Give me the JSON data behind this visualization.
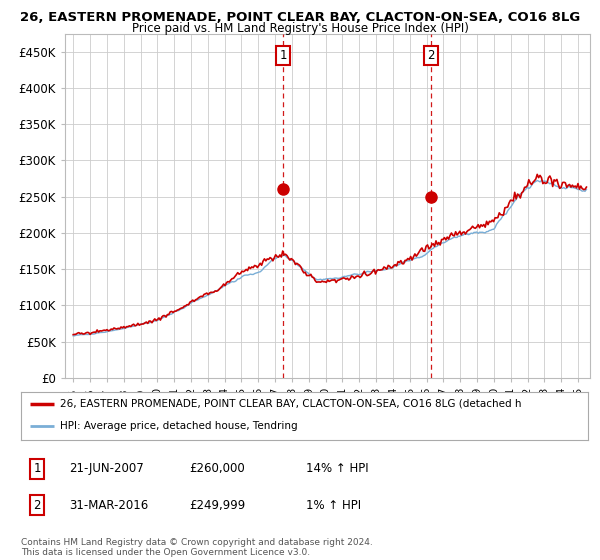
{
  "title1": "26, EASTERN PROMENADE, POINT CLEAR BAY, CLACTON-ON-SEA, CO16 8LG",
  "title2": "Price paid vs. HM Land Registry's House Price Index (HPI)",
  "ylabel_ticks": [
    "£0",
    "£50K",
    "£100K",
    "£150K",
    "£200K",
    "£250K",
    "£300K",
    "£350K",
    "£400K",
    "£450K"
  ],
  "ytick_vals": [
    0,
    50000,
    100000,
    150000,
    200000,
    250000,
    300000,
    350000,
    400000,
    450000
  ],
  "ylim": [
    0,
    475000
  ],
  "xlim_start": 1994.5,
  "xlim_end": 2025.7,
  "sale1_x": 2007.47,
  "sale1_y": 260000,
  "sale2_x": 2016.25,
  "sale2_y": 249999,
  "hpi_color": "#7aaed6",
  "price_color": "#cc0000",
  "shade_color": "#daeaf7",
  "vline_color": "#cc0000",
  "legend_label1": "26, EASTERN PROMENADE, POINT CLEAR BAY, CLACTON-ON-SEA, CO16 8LG (detached h",
  "legend_label2": "HPI: Average price, detached house, Tendring",
  "table_row1": [
    "1",
    "21-JUN-2007",
    "£260,000",
    "14% ↑ HPI"
  ],
  "table_row2": [
    "2",
    "31-MAR-2016",
    "£249,999",
    "1% ↑ HPI"
  ],
  "footer": "Contains HM Land Registry data © Crown copyright and database right 2024.\nThis data is licensed under the Open Government Licence v3.0.",
  "bg_color": "#ffffff",
  "grid_color": "#cccccc"
}
